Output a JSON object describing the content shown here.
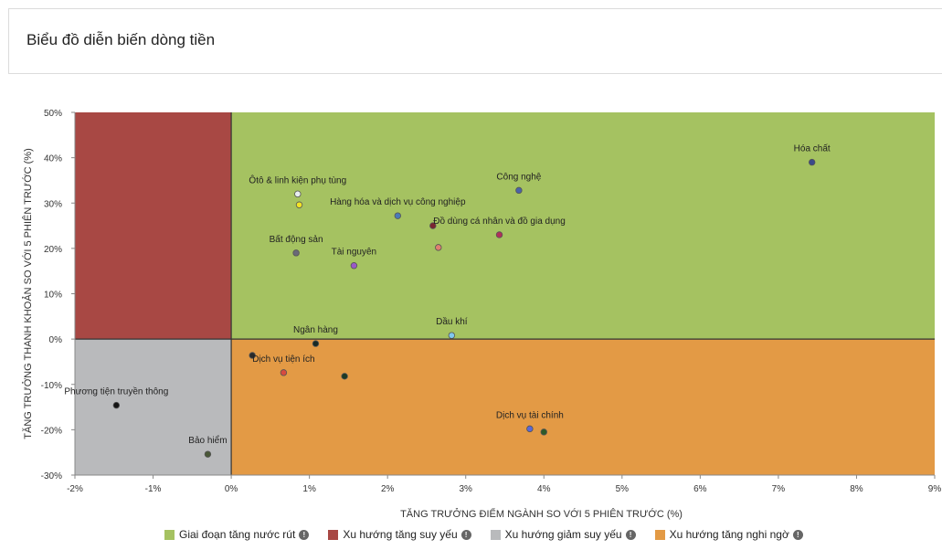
{
  "page": {
    "title": "Biểu đồ diễn biến dòng tiền"
  },
  "chart_data": {
    "type": "scatter",
    "xlabel": "TĂNG TRƯỞNG ĐIỂM NGÀNH SO VỚI 5 PHIÊN TRƯỚC (%)",
    "ylabel": "TĂNG TRƯỞNG THANH KHOẢN SO VỚI 5 PHIÊN TRƯỚC (%)",
    "xlim": [
      -2,
      9
    ],
    "ylim": [
      -30,
      50
    ],
    "x_ticks": [
      -2,
      -1,
      0,
      1,
      2,
      3,
      4,
      5,
      6,
      7,
      8,
      9
    ],
    "x_tick_labels": [
      "-2%",
      "-1%",
      "0%",
      "1%",
      "2%",
      "3%",
      "4%",
      "5%",
      "6%",
      "7%",
      "8%",
      "9%"
    ],
    "y_ticks": [
      50,
      40,
      30,
      20,
      10,
      0,
      -10,
      -20,
      -30
    ],
    "y_tick_labels": [
      "50%",
      "40%",
      "30%",
      "20%",
      "10%",
      "0%",
      "-10%",
      "-20%",
      "-30%"
    ],
    "quadrants": [
      {
        "name": "Giai đoạn tăng nước rút",
        "color": "#a5c261"
      },
      {
        "name": "Xu hướng tăng suy yếu",
        "color": "#a84844"
      },
      {
        "name": "Xu hướng giảm suy yếu",
        "color": "#b9babc"
      },
      {
        "name": "Xu hướng tăng nghi ngờ",
        "color": "#e39a45"
      }
    ],
    "points": [
      {
        "label": "Hóa chất",
        "x": 7.43,
        "y": 39.0,
        "color": "#3b4a8a"
      },
      {
        "label": "Công nghệ",
        "x": 3.68,
        "y": 32.8,
        "color": "#4a62a8"
      },
      {
        "label": "Ôtô & linh kiện phụ tùng",
        "x": 0.85,
        "y": 32.0,
        "color": "#e8eef0"
      },
      {
        "label": "",
        "x": 0.87,
        "y": 29.6,
        "color": "#f2e425"
      },
      {
        "label": "Hàng hóa và dịch vụ công nghiệp",
        "x": 2.13,
        "y": 27.2,
        "color": "#4a7ab8"
      },
      {
        "label": "",
        "x": 2.58,
        "y": 25.0,
        "color": "#7a2530"
      },
      {
        "label": "Đồ dùng cá nhân và đồ gia dụng",
        "x": 3.43,
        "y": 23.0,
        "color": "#b0305a"
      },
      {
        "label": "",
        "x": 2.65,
        "y": 20.2,
        "color": "#e08070"
      },
      {
        "label": "Bất động sản",
        "x": 0.83,
        "y": 19.0,
        "color": "#6a6a78"
      },
      {
        "label": "Tài nguyên",
        "x": 1.57,
        "y": 16.2,
        "color": "#9a58c8"
      },
      {
        "label": "Dầu khí",
        "x": 2.82,
        "y": 0.8,
        "color": "#80c8ee"
      },
      {
        "label": "Ngân hàng",
        "x": 1.08,
        "y": -1.0,
        "color": "#1a2a24"
      },
      {
        "label": "",
        "x": 0.27,
        "y": -3.6,
        "color": "#2a2a2a"
      },
      {
        "label": "Dịch vụ tiện ích",
        "x": 0.67,
        "y": -7.4,
        "color": "#d84a40"
      },
      {
        "label": "",
        "x": 1.45,
        "y": -8.2,
        "color": "#1f3a24"
      },
      {
        "label": "Phương tiện truyền thông",
        "x": -1.47,
        "y": -14.6,
        "color": "#151515"
      },
      {
        "label": "Dịch vụ tài chính",
        "x": 3.82,
        "y": -19.8,
        "color": "#5a68d8"
      },
      {
        "label": "",
        "x": 4.0,
        "y": -20.5,
        "color": "#2e5a28"
      },
      {
        "label": "Bảo hiểm",
        "x": -0.3,
        "y": -25.4,
        "color": "#4a5838"
      }
    ]
  },
  "legend": [
    {
      "label": "Giai đoạn tăng nước rút",
      "color": "#a5c261",
      "icon": "info-icon"
    },
    {
      "label": "Xu hướng tăng suy yếu",
      "color": "#a84844",
      "icon": "info-icon"
    },
    {
      "label": "Xu hướng giảm suy yếu",
      "color": "#b9babc",
      "icon": "info-icon"
    },
    {
      "label": "Xu hướng tăng nghi ngờ",
      "color": "#e39a45",
      "icon": "info-icon"
    }
  ]
}
